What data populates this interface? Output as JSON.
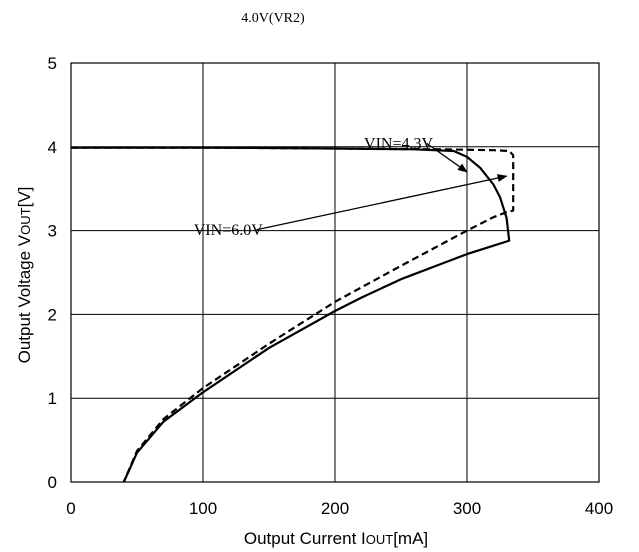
{
  "chart_data": {
    "type": "line",
    "title": "4.0V(VR2)",
    "xlabel": "Output Current I",
    "xlabel_sub": "OUT",
    "xlabel_unit": "[mA]",
    "ylabel": "Output Voltage V",
    "ylabel_sub": "OUT",
    "ylabel_unit": "[V]",
    "xlim": [
      0,
      400
    ],
    "ylim": [
      0,
      5
    ],
    "xticks": [
      "0",
      "100",
      "200",
      "300",
      "400"
    ],
    "yticks": [
      "0",
      "1",
      "2",
      "3",
      "4",
      "5"
    ],
    "grid": true,
    "series": [
      {
        "name": "VIN=4.3V",
        "dash": "solid",
        "x": [
          0,
          100,
          200,
          260,
          290,
          300,
          310,
          320,
          325,
          330,
          332,
          330,
          320,
          300,
          280,
          250,
          220,
          200,
          150,
          100,
          70,
          50,
          40
        ],
        "y": [
          3.99,
          3.99,
          3.98,
          3.97,
          3.95,
          3.88,
          3.75,
          3.55,
          3.4,
          3.15,
          2.88,
          2.87,
          2.82,
          2.72,
          2.6,
          2.42,
          2.2,
          2.04,
          1.6,
          1.07,
          0.72,
          0.35,
          0.0
        ]
      },
      {
        "name": "VIN=6.0V",
        "dash": "dashed",
        "x": [
          0,
          100,
          200,
          280,
          320,
          332,
          335,
          335,
          330,
          320,
          300,
          250,
          200,
          150,
          100,
          70,
          50,
          40
        ],
        "y": [
          3.99,
          3.99,
          3.98,
          3.97,
          3.96,
          3.95,
          3.9,
          3.24,
          3.22,
          3.16,
          3.0,
          2.58,
          2.15,
          1.65,
          1.12,
          0.75,
          0.37,
          0.0
        ]
      }
    ],
    "annotations": [
      {
        "text": "VIN=4.3V",
        "series": "VIN=4.3V",
        "text_at": [
          222,
          3.98
        ],
        "arrow_to": [
          300,
          3.7
        ]
      },
      {
        "text": "VIN=6.0V",
        "series": "VIN=6.0V",
        "text_at": [
          93,
          2.95
        ],
        "arrow_to": [
          330,
          3.65
        ]
      }
    ]
  }
}
